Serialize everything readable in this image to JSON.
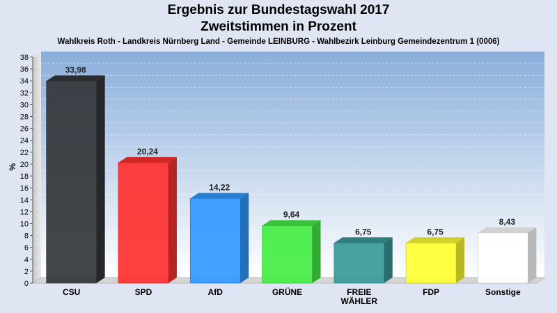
{
  "chart_data": {
    "type": "bar",
    "title": "Ergebnis zur Bundestagswahl 2017",
    "subtitle_line2": "Zweitstimmen in Prozent",
    "subtitle": "Wahlkreis Roth - Landkreis Nürnberg Land - Gemeinde LEINBURG - Wahlbezirk Leinburg Gemeindezentrum 1 (0006)",
    "ylabel": "%",
    "ylim": [
      0,
      38
    ],
    "ytick_step": 2,
    "grid": true,
    "categories": [
      "CSU",
      "SPD",
      "AfD",
      "GRÜNE",
      "FREIE WÄHLER",
      "FDP",
      "Sonstige"
    ],
    "category_lines": [
      [
        "CSU"
      ],
      [
        "SPD"
      ],
      [
        "AfD"
      ],
      [
        "GRÜNE"
      ],
      [
        "FREIE",
        "WÄHLER"
      ],
      [
        "FDP"
      ],
      [
        "Sonstige"
      ]
    ],
    "values": [
      33.98,
      20.24,
      14.22,
      9.64,
      6.75,
      6.75,
      8.43
    ],
    "value_labels": [
      "33,98",
      "20,24",
      "14,22",
      "9,64",
      "6,75",
      "6,75",
      "8,43"
    ],
    "colors": [
      "#33363a",
      "#ff3030",
      "#3399ff",
      "#44ee44",
      "#3a9a9a",
      "#ffff33",
      "#ffffff"
    ]
  }
}
